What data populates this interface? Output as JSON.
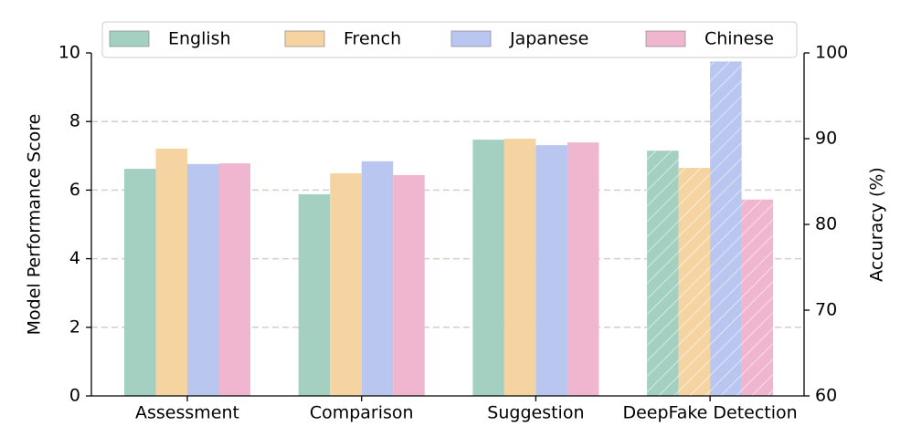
{
  "chart_data": {
    "type": "bar",
    "categories": [
      "Assessment",
      "Comparison",
      "Suggestion",
      "DeepFake Detection"
    ],
    "y_label": "Model Performance Score",
    "y2_label": "Accuracy (%)",
    "ylim": [
      0,
      10
    ],
    "yticks": [
      0,
      2,
      4,
      6,
      8,
      10
    ],
    "y2lim": [
      60,
      100
    ],
    "y2ticks": [
      60,
      70,
      80,
      90,
      100
    ],
    "grid": true,
    "legend": "upper center",
    "series": [
      {
        "name": "English",
        "color": "#a3d0c1",
        "values": [
          6.62,
          5.88,
          7.47,
          null
        ]
      },
      {
        "name": "French",
        "color": "#f6d4a2",
        "values": [
          7.21,
          6.49,
          7.5,
          null
        ]
      },
      {
        "name": "Japanese",
        "color": "#b8c6f0",
        "values": [
          6.76,
          6.84,
          7.31,
          null
        ]
      },
      {
        "name": "Chinese",
        "color": "#f0b6d0",
        "values": [
          6.78,
          6.44,
          7.39,
          null
        ]
      },
      {
        "color": "#a3d0c1",
        "axis": "y2",
        "hatch": true,
        "values": [
          null,
          null,
          null,
          88.6
        ]
      },
      {
        "color": "#f6d4a2",
        "axis": "y2",
        "hatch": true,
        "values": [
          null,
          null,
          null,
          86.6
        ]
      },
      {
        "color": "#b8c6f0",
        "axis": "y2",
        "hatch": true,
        "values": [
          null,
          null,
          null,
          99.0
        ]
      },
      {
        "color": "#f0b6d0",
        "axis": "y2",
        "hatch": true,
        "values": [
          null,
          null,
          null,
          82.9
        ]
      }
    ]
  }
}
